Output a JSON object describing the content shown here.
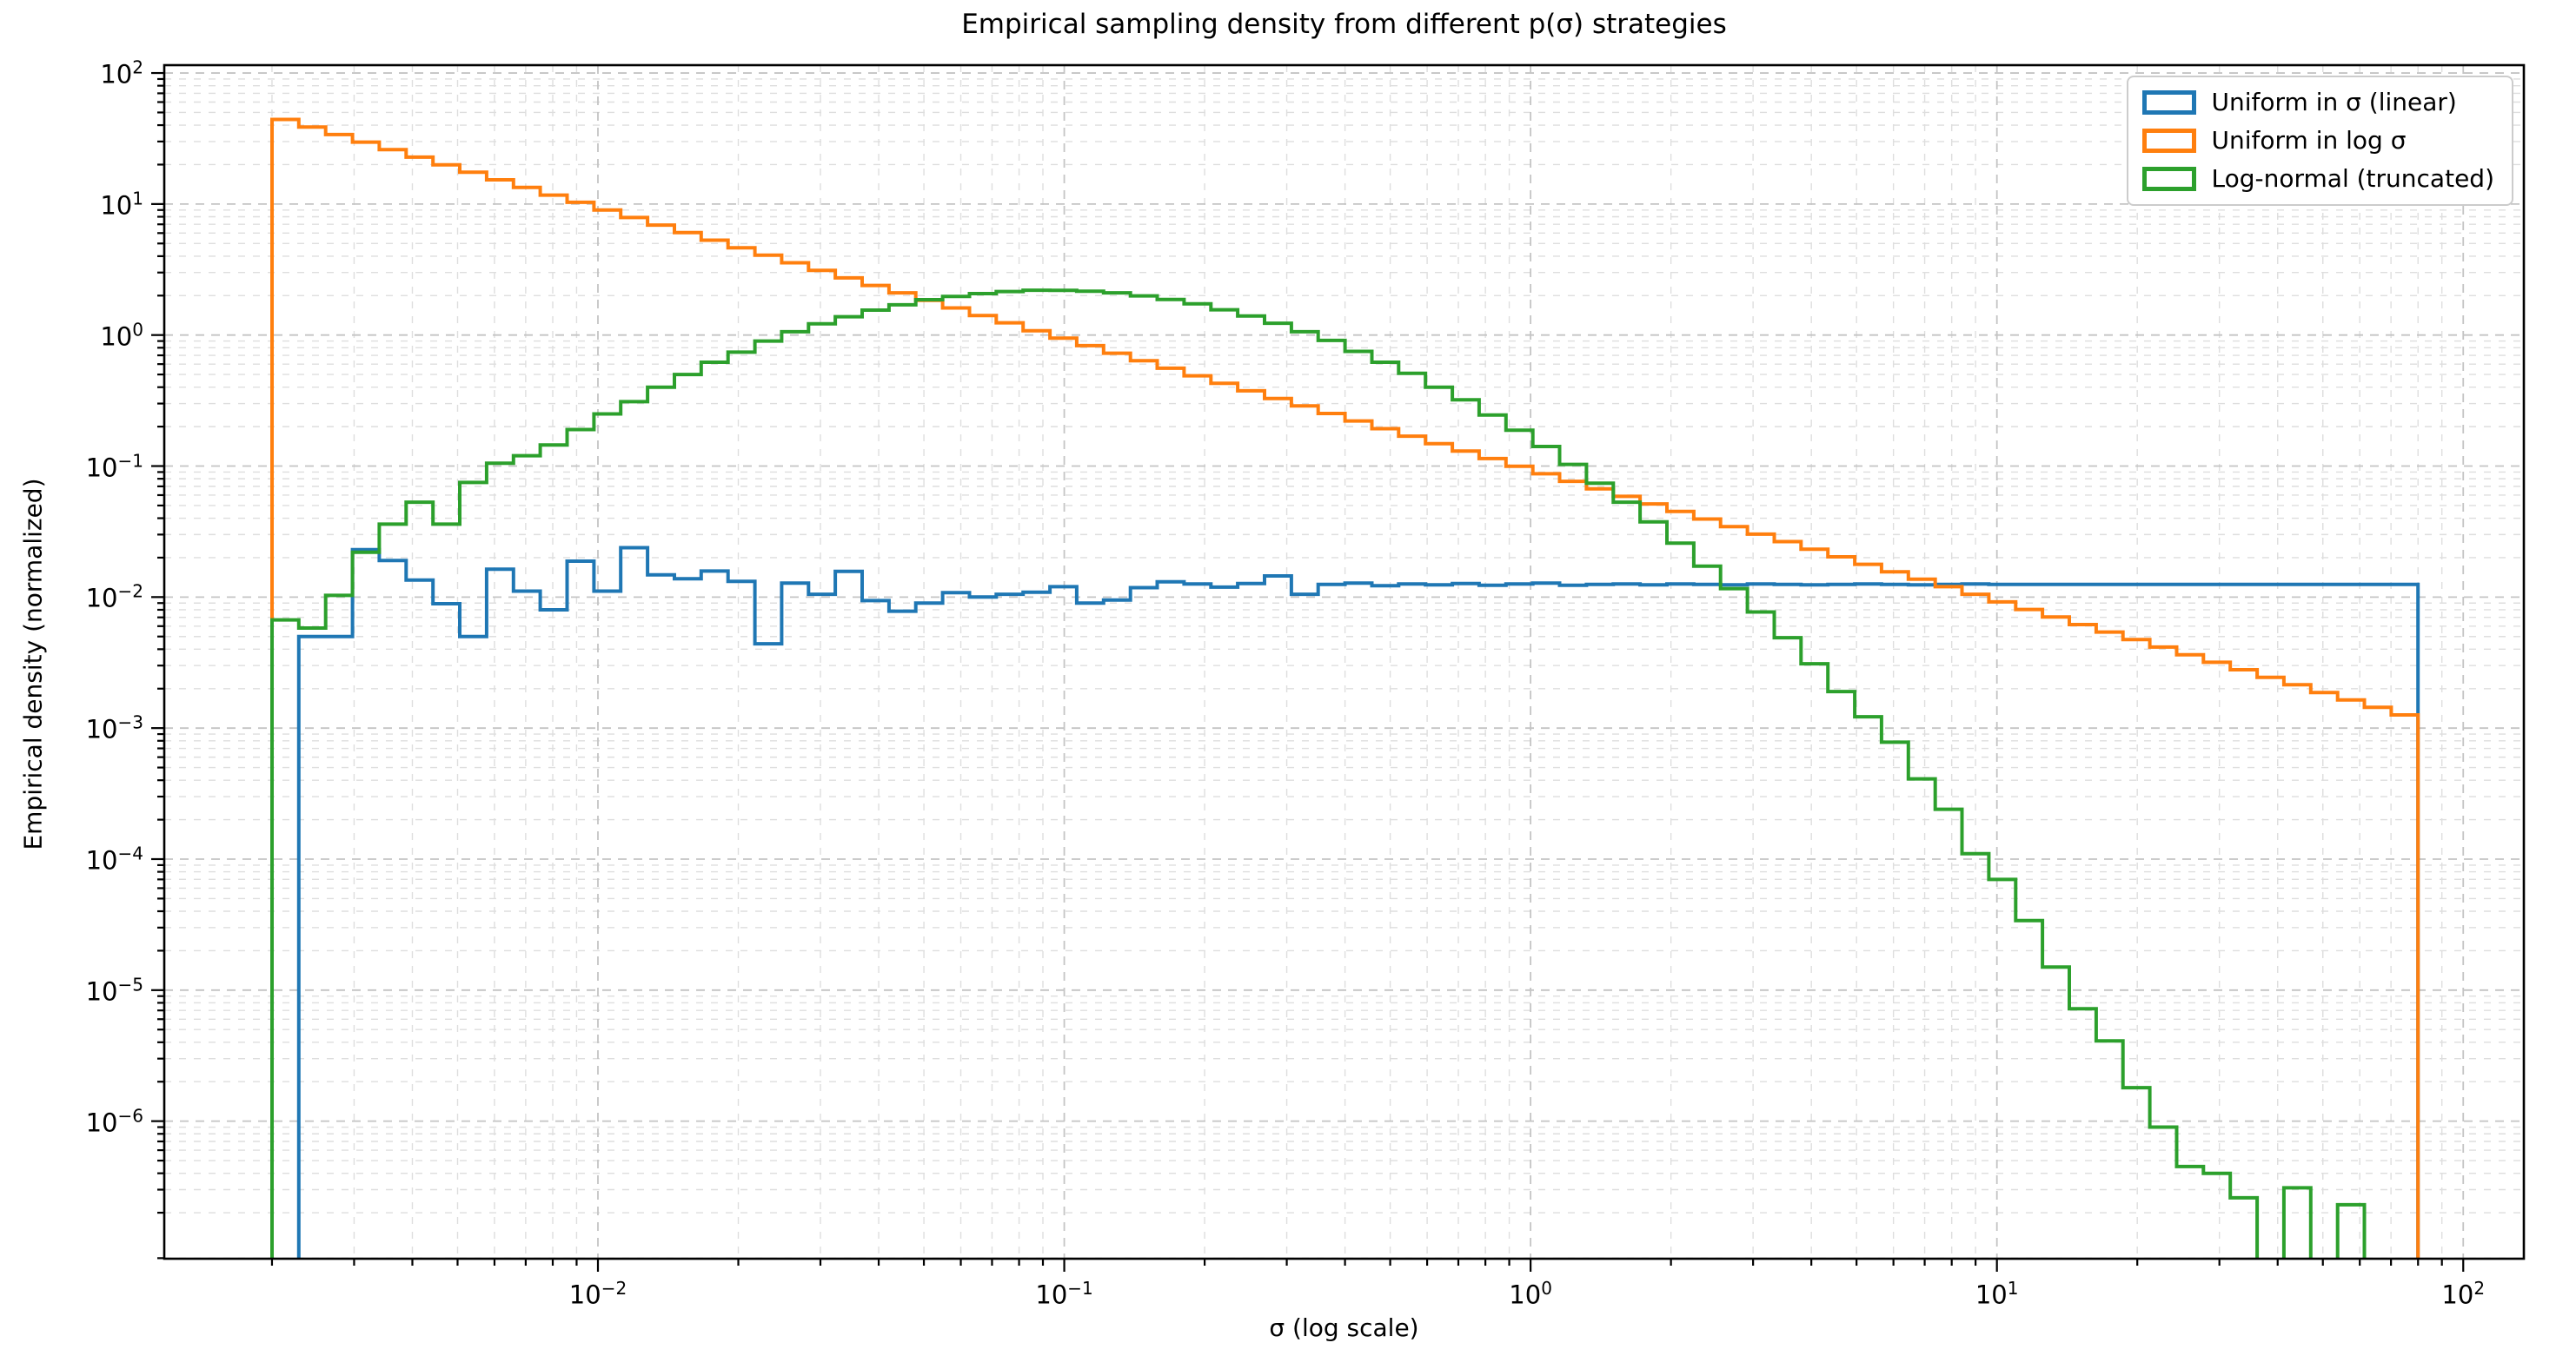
{
  "title": "Empirical sampling density from different p(σ) strategies",
  "chart_data": {
    "type": "step-histogram",
    "title": "Empirical sampling density from different p(σ) strategies",
    "xlabel": "σ (log scale)",
    "ylabel": "Empirical density (normalized)",
    "x_scale": "log",
    "y_scale": "log",
    "xlim_log10": [
      -2.93,
      2.13
    ],
    "ylim_log10": [
      -7.05,
      2.06
    ],
    "x_ticks_exp": [
      -2,
      -1,
      0,
      1,
      2
    ],
    "y_ticks_exp": [
      2,
      1,
      0,
      -1,
      -2,
      -3,
      -4,
      -5,
      -6
    ],
    "grid": {
      "which": "both",
      "style": "dashed"
    },
    "legend_position": "upper right",
    "bins": {
      "sigma_min": 0.002,
      "sigma_max": 80,
      "count": 80,
      "spacing": "log"
    },
    "series": [
      {
        "name": "Uniform in σ (linear)",
        "key": "uniform-sigma-linear",
        "color": "#1f77b4",
        "values": [
          0,
          0.005,
          0.005,
          0.023,
          0.019,
          0.0135,
          0.0089,
          0.005,
          0.0163,
          0.0111,
          0.008,
          0.0188,
          0.0111,
          0.0238,
          0.0148,
          0.0138,
          0.0158,
          0.0132,
          0.0044,
          0.0128,
          0.0105,
          0.0157,
          0.0094,
          0.0078,
          0.009,
          0.0108,
          0.01,
          0.0105,
          0.0109,
          0.012,
          0.009,
          0.0095,
          0.0118,
          0.0131,
          0.0126,
          0.0119,
          0.0127,
          0.0145,
          0.0105,
          0.0125,
          0.0128,
          0.0122,
          0.0126,
          0.0124,
          0.0127,
          0.0123,
          0.0126,
          0.0128,
          0.0123,
          0.0125,
          0.0126,
          0.0124,
          0.0126,
          0.0125,
          0.0124,
          0.0126,
          0.0125,
          0.0124,
          0.0125,
          0.0126,
          0.0125,
          0.0124,
          0.0125,
          0.0126,
          0.0125,
          0.0125,
          0.0125,
          0.0125,
          0.0125,
          0.0125,
          0.0125,
          0.0125,
          0.0125,
          0.0125,
          0.0125,
          0.0125,
          0.0125,
          0.0125,
          0.0125,
          0.0125
        ]
      },
      {
        "name": "Uniform in log σ",
        "key": "uniform-log-sigma",
        "color": "#ff7f0e",
        "values": [
          44.2,
          38.7,
          33.9,
          29.7,
          26.0,
          22.8,
          19.9,
          17.5,
          15.3,
          13.4,
          11.7,
          10.3,
          9.01,
          7.89,
          6.91,
          6.05,
          5.3,
          4.64,
          4.07,
          3.56,
          3.12,
          2.73,
          2.39,
          2.1,
          1.84,
          1.61,
          1.41,
          1.24,
          1.08,
          0.948,
          0.83,
          0.727,
          0.637,
          0.558,
          0.489,
          0.428,
          0.375,
          0.328,
          0.288,
          0.252,
          0.221,
          0.193,
          0.169,
          0.148,
          0.13,
          0.114,
          0.0997,
          0.0873,
          0.0765,
          0.067,
          0.0587,
          0.0514,
          0.045,
          0.0394,
          0.0345,
          0.0302,
          0.0265,
          0.0232,
          0.0203,
          0.0178,
          0.0156,
          0.0137,
          0.012,
          0.0105,
          0.00919,
          0.00805,
          0.00705,
          0.00617,
          0.00541,
          0.00474,
          0.00415,
          0.00363,
          0.00318,
          0.00279,
          0.00244,
          0.00214,
          0.00187,
          0.00164,
          0.00144,
          0.00126
        ]
      },
      {
        "name": "Log-normal (truncated)",
        "key": "log-normal-truncated",
        "color": "#2ca02c",
        "values": [
          0.0067,
          0.0058,
          0.0103,
          0.022,
          0.036,
          0.053,
          0.036,
          0.075,
          0.105,
          0.12,
          0.145,
          0.19,
          0.25,
          0.31,
          0.4,
          0.5,
          0.62,
          0.74,
          0.9,
          1.06,
          1.22,
          1.38,
          1.55,
          1.7,
          1.86,
          1.97,
          2.07,
          2.15,
          2.2,
          2.19,
          2.16,
          2.1,
          1.99,
          1.87,
          1.73,
          1.56,
          1.4,
          1.23,
          1.06,
          0.91,
          0.75,
          0.62,
          0.51,
          0.4,
          0.32,
          0.245,
          0.188,
          0.141,
          0.103,
          0.074,
          0.053,
          0.0375,
          0.0258,
          0.0172,
          0.0116,
          0.0077,
          0.0049,
          0.0031,
          0.0019,
          0.00122,
          0.00078,
          0.00041,
          0.00024,
          0.00011,
          7e-05,
          3.4e-05,
          1.5e-05,
          7.2e-06,
          4.1e-06,
          1.8e-06,
          9e-07,
          4.5e-07,
          4e-07,
          2.6e-07,
          0,
          3.1e-07,
          0,
          2.3e-07,
          0,
          0
        ]
      }
    ]
  }
}
